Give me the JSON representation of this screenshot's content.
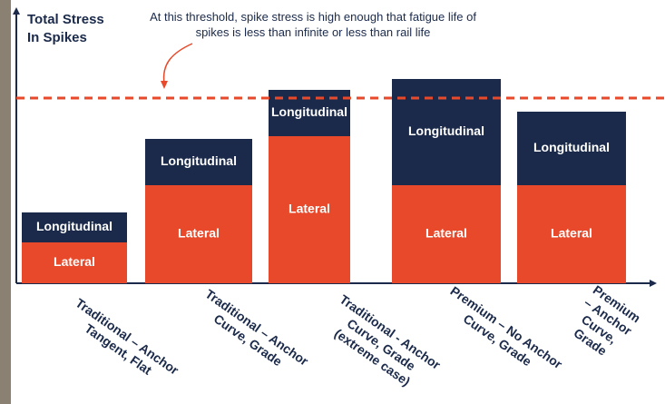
{
  "chart_data": {
    "type": "stacked_bar",
    "y_label": "Total Stress\nIn Spikes",
    "annotation": "At this threshold, spike stress is high enough that fatigue life of spikes is less than infinite or less than rail life",
    "categories": [
      "Traditional – Anchor\nTangent, Flat",
      "Traditional – Anchor\nCurve, Grade",
      "Traditional - Anchor\nCurve, Grade\n(extreme case)",
      "Premium – No Anchor\nCurve, Grade",
      "Premium – Anchor\nCurve, Grade"
    ],
    "series": [
      {
        "name": "Lateral",
        "color": "#e8492a",
        "values": [
          15,
          36,
          54,
          36,
          36
        ]
      },
      {
        "name": "Longitudinal",
        "color": "#1b2a4a",
        "values": [
          11,
          17,
          17,
          39,
          27
        ]
      }
    ],
    "threshold": 68,
    "threshold_color": "#e8492a",
    "ylim": [
      0,
      100
    ]
  }
}
